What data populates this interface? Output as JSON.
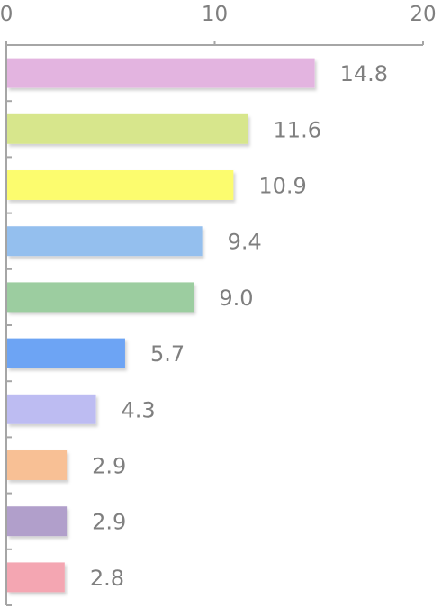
{
  "chart_data": {
    "type": "bar",
    "orientation": "horizontal",
    "title": "",
    "xlabel": "",
    "ylabel": "",
    "xlim": [
      0,
      20
    ],
    "x_ticks": [
      0,
      10,
      20
    ],
    "x_axis_position": "top",
    "grid": false,
    "legend": "none",
    "values": [
      14.8,
      11.6,
      10.9,
      9.4,
      9.0,
      5.7,
      4.3,
      2.9,
      2.9,
      2.8
    ],
    "value_labels": [
      "14.8",
      "11.6",
      "10.9",
      "9.4",
      "9.0",
      "5.7",
      "4.3",
      "2.9",
      "2.9",
      "2.8"
    ],
    "colors": [
      "#e3b4e0",
      "#d7e68c",
      "#fcfc6e",
      "#94bfee",
      "#9ccda0",
      "#6da4f4",
      "#bdbcf2",
      "#f8c095",
      "#b19fcb",
      "#f4a6b2"
    ]
  }
}
